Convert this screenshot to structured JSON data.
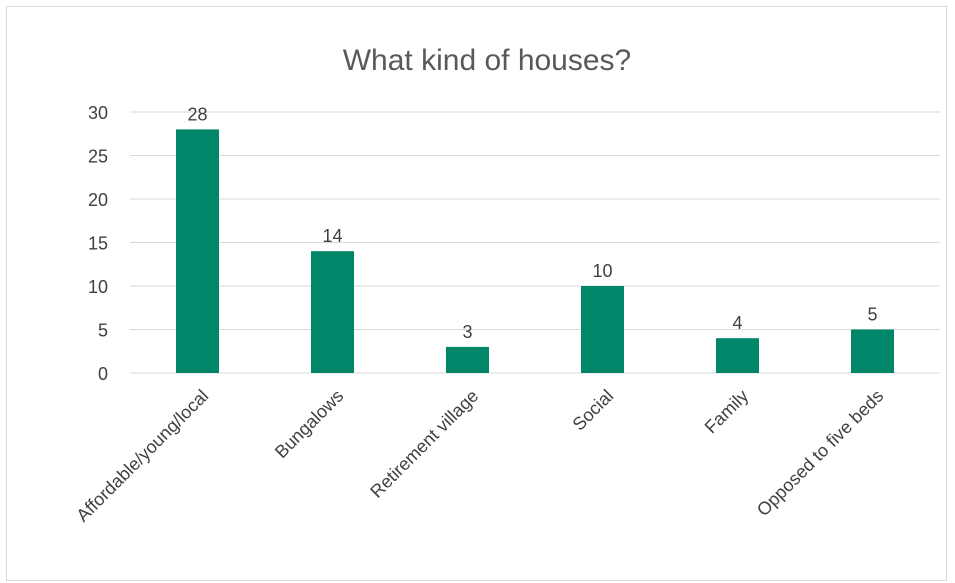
{
  "chart_data": {
    "type": "bar",
    "title": "What kind of houses?",
    "categories": [
      "Affordable/young/local",
      "Bungalows",
      "Retirement village",
      "Social",
      "Family",
      "Opposed to five beds"
    ],
    "values": [
      28,
      14,
      3,
      10,
      4,
      5
    ],
    "ylim": [
      0,
      30
    ],
    "yticks": [
      0,
      5,
      10,
      15,
      20,
      25,
      30
    ],
    "grid": true,
    "legend": "none",
    "bar_color": "#00876a"
  }
}
